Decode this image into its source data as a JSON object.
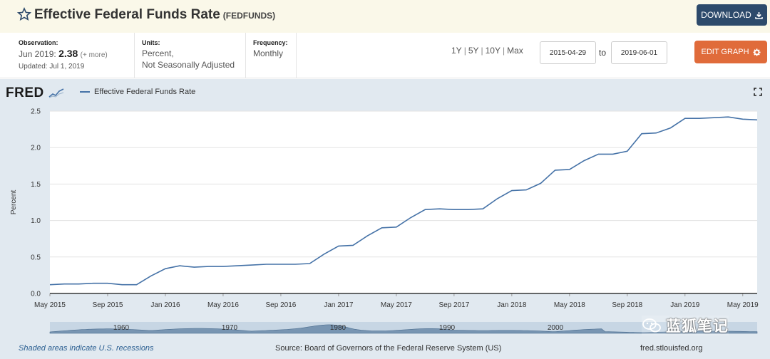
{
  "header": {
    "title": "Effective Federal Funds Rate",
    "series_id": "(FEDFUNDS)",
    "download_label": "DOWNLOAD"
  },
  "meta": {
    "observation_label": "Observation:",
    "observation_period": "Jun 2019:",
    "observation_value": "2.38",
    "observation_more": "(+ more)",
    "updated": "Updated: Jul 1, 2019",
    "units_label": "Units:",
    "units_line1": "Percent,",
    "units_line2": "Not Seasonally Adjusted",
    "frequency_label": "Frequency:",
    "frequency_value": "Monthly"
  },
  "range": {
    "links": [
      "1Y",
      "5Y",
      "10Y",
      "Max"
    ],
    "separator": "|",
    "start_date": "2015-04-29",
    "to_label": "to",
    "end_date": "2019-06-01"
  },
  "edit_label": "EDIT GRAPH",
  "logo": "FRED",
  "expand_icon": "expand-icon",
  "footer": {
    "recessions_note": "Shaded areas indicate U.S. recessions",
    "source": "Source: Board of Governors of the Federal Reserve System (US)",
    "site": "fred.stlouisfed.org"
  },
  "watermark": {
    "text": "蓝狐笔记",
    "icon": "wechat-icon"
  },
  "colors": {
    "line": "#4572a7",
    "graph_bg": "#e1e9f0",
    "header_bg": "#faf8e9",
    "download_bg": "#2d4a6b",
    "edit_bg": "#e06b3a"
  },
  "chart_data": {
    "type": "line",
    "title": "",
    "xlabel": "",
    "ylabel": "Percent",
    "legend": "top-left",
    "grid": true,
    "ylim": [
      0,
      2.5
    ],
    "yticks": [
      "0.0",
      "0.5",
      "1.0",
      "1.5",
      "2.0",
      "2.5"
    ],
    "xticks": [
      "May 2015",
      "Sep 2015",
      "Jan 2016",
      "May 2016",
      "Sep 2016",
      "Jan 2017",
      "May 2017",
      "Sep 2017",
      "Jan 2018",
      "May 2018",
      "Sep 2018",
      "Jan 2019",
      "May 2019"
    ],
    "series": [
      {
        "name": "Effective Federal Funds Rate",
        "x": [
          "2015-05",
          "2015-06",
          "2015-07",
          "2015-08",
          "2015-09",
          "2015-10",
          "2015-11",
          "2015-12",
          "2016-01",
          "2016-02",
          "2016-03",
          "2016-04",
          "2016-05",
          "2016-06",
          "2016-07",
          "2016-08",
          "2016-09",
          "2016-10",
          "2016-11",
          "2016-12",
          "2017-01",
          "2017-02",
          "2017-03",
          "2017-04",
          "2017-05",
          "2017-06",
          "2017-07",
          "2017-08",
          "2017-09",
          "2017-10",
          "2017-11",
          "2017-12",
          "2018-01",
          "2018-02",
          "2018-03",
          "2018-04",
          "2018-05",
          "2018-06",
          "2018-07",
          "2018-08",
          "2018-09",
          "2018-10",
          "2018-11",
          "2018-12",
          "2019-01",
          "2019-02",
          "2019-03",
          "2019-04",
          "2019-05",
          "2019-06"
        ],
        "values": [
          0.12,
          0.13,
          0.13,
          0.14,
          0.14,
          0.12,
          0.12,
          0.24,
          0.34,
          0.38,
          0.36,
          0.37,
          0.37,
          0.38,
          0.39,
          0.4,
          0.4,
          0.4,
          0.41,
          0.54,
          0.65,
          0.66,
          0.79,
          0.9,
          0.91,
          1.04,
          1.15,
          1.16,
          1.15,
          1.15,
          1.16,
          1.3,
          1.41,
          1.42,
          1.51,
          1.69,
          1.7,
          1.82,
          1.91,
          1.91,
          1.95,
          2.19,
          2.2,
          2.27,
          2.4,
          2.4,
          2.41,
          2.42,
          2.39,
          2.38
        ]
      }
    ],
    "minimap_ticks": [
      "1960",
      "1970",
      "1980",
      "1990",
      "2000"
    ]
  }
}
